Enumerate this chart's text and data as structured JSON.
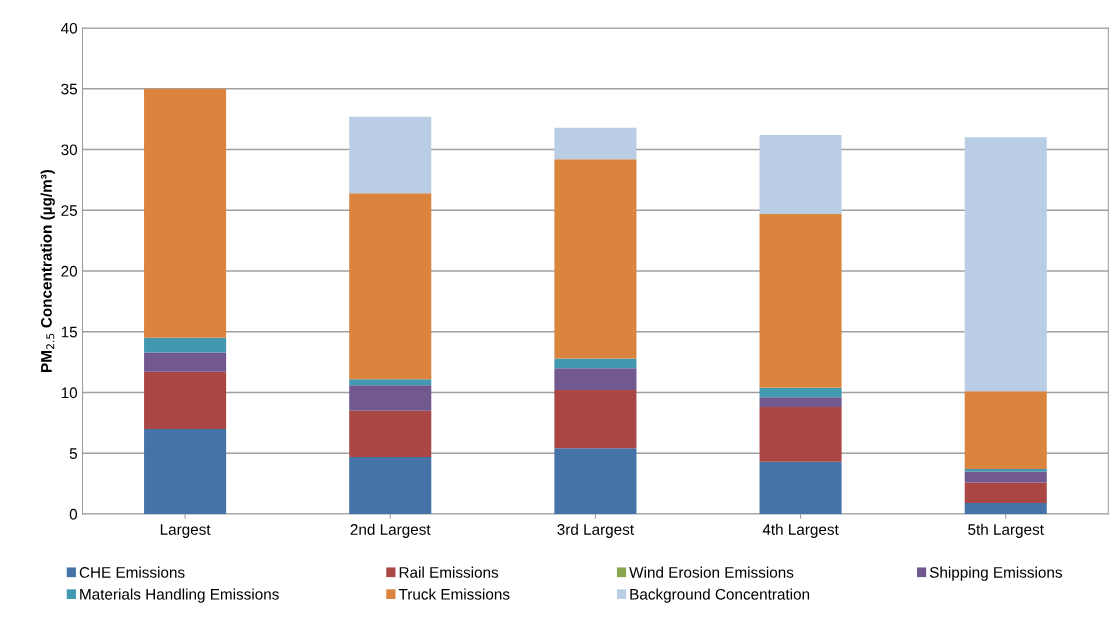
{
  "chart_data": {
    "type": "bar",
    "stacked": true,
    "ylabel": "PM$_{2.5}$ Concentration (µg/m³)",
    "categories": [
      "Largest",
      "2nd Largest",
      "3rd Largest",
      "4th Largest",
      "5th Largest"
    ],
    "series": [
      {
        "name": "CHE Emissions",
        "color": "#4572a7",
        "values": [
          7.0,
          4.7,
          5.4,
          4.3,
          0.9
        ]
      },
      {
        "name": "Rail Emissions",
        "color": "#aa4643",
        "values": [
          4.7,
          3.8,
          4.8,
          4.5,
          1.7
        ]
      },
      {
        "name": "Wind Erosion Emissions",
        "color": "#89a54e",
        "values": [
          0,
          0,
          0,
          0,
          0
        ]
      },
      {
        "name": "Shipping Emissions",
        "color": "#71588f",
        "values": [
          1.6,
          2.1,
          1.8,
          0.8,
          0.9
        ]
      },
      {
        "name": "Materials Handling Emissions",
        "color": "#4198af",
        "values": [
          1.2,
          0.5,
          0.8,
          0.8,
          0.2
        ]
      },
      {
        "name": "Truck Emissions",
        "color": "#db843d",
        "values": [
          20.5,
          15.3,
          16.4,
          14.3,
          6.4
        ]
      },
      {
        "name": "Background Concentration",
        "color": "#b9cde5",
        "values": [
          0,
          6.3,
          2.6,
          6.5,
          20.9
        ]
      }
    ],
    "ylim": [
      0,
      40
    ],
    "yticks": [
      0,
      5,
      10,
      15,
      20,
      25,
      30,
      35,
      40
    ],
    "grid": "y",
    "legend": "bottom"
  }
}
